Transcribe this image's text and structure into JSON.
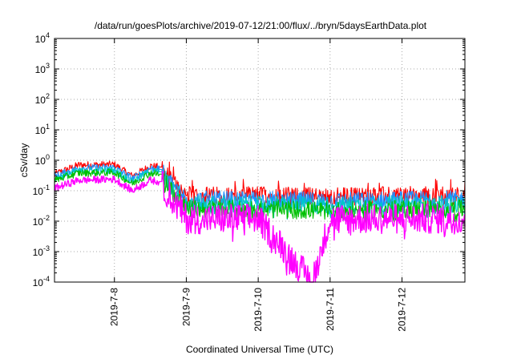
{
  "chart_data": {
    "type": "line",
    "title": "/data/run/goesPlots/archive/2019-07-12/21:00/flux/../bryn/5daysEarthData.plot",
    "xlabel": "Coordinated Universal Time (UTC)",
    "ylabel": "cSv/day",
    "y_scale": "log",
    "ylim": [
      0.0001,
      10000
    ],
    "y_ticks": [
      {
        "value": 0.0001,
        "base": "10",
        "exp": "-4"
      },
      {
        "value": 0.001,
        "base": "10",
        "exp": "-3"
      },
      {
        "value": 0.01,
        "base": "10",
        "exp": "-2"
      },
      {
        "value": 0.1,
        "base": "10",
        "exp": "-1"
      },
      {
        "value": 1,
        "base": "10",
        "exp": "0"
      },
      {
        "value": 10,
        "base": "10",
        "exp": "1"
      },
      {
        "value": 100,
        "base": "10",
        "exp": "2"
      },
      {
        "value": 1000,
        "base": "10",
        "exp": "3"
      },
      {
        "value": 10000,
        "base": "10",
        "exp": "4"
      }
    ],
    "xlim": [
      "2019-07-07 04:00",
      "2019-07-12 21:00"
    ],
    "x_ticks": [
      "2019-7-8",
      "2019-7-9",
      "2019-7-10",
      "2019-7-11",
      "2019-7-12"
    ],
    "grid": true,
    "series": [
      {
        "color": "#ff0000",
        "x": [
          "2019-07-07 04:00",
          "2019-07-07 12:00",
          "2019-07-08 00:00",
          "2019-07-08 06:00",
          "2019-07-08 12:00",
          "2019-07-08 15:00",
          "2019-07-09 00:00",
          "2019-07-10 00:00",
          "2019-07-11 00:00",
          "2019-07-12 00:00",
          "2019-07-12 21:00"
        ],
        "y": [
          0.35,
          0.7,
          0.72,
          0.3,
          0.65,
          0.6,
          0.07,
          0.07,
          0.065,
          0.07,
          0.07
        ]
      },
      {
        "color": "#1e90ff",
        "x": [
          "2019-07-07 04:00",
          "2019-07-07 12:00",
          "2019-07-08 00:00",
          "2019-07-08 06:00",
          "2019-07-08 12:00",
          "2019-07-08 15:00",
          "2019-07-09 00:00",
          "2019-07-10 00:00",
          "2019-07-11 00:00",
          "2019-07-12 00:00",
          "2019-07-12 21:00"
        ],
        "y": [
          0.3,
          0.55,
          0.58,
          0.25,
          0.55,
          0.5,
          0.05,
          0.05,
          0.045,
          0.05,
          0.05
        ]
      },
      {
        "color": "#00c8c8",
        "x": [
          "2019-07-07 04:00",
          "2019-07-07 12:00",
          "2019-07-08 00:00",
          "2019-07-08 06:00",
          "2019-07-08 12:00",
          "2019-07-08 15:00",
          "2019-07-09 00:00",
          "2019-07-10 00:00",
          "2019-07-11 00:00",
          "2019-07-12 00:00",
          "2019-07-12 21:00"
        ],
        "y": [
          0.25,
          0.45,
          0.47,
          0.2,
          0.45,
          0.42,
          0.035,
          0.035,
          0.032,
          0.035,
          0.035
        ]
      },
      {
        "color": "#00c000",
        "x": [
          "2019-07-07 04:00",
          "2019-07-07 12:00",
          "2019-07-08 00:00",
          "2019-07-08 06:00",
          "2019-07-08 12:00",
          "2019-07-08 15:00",
          "2019-07-09 00:00",
          "2019-07-10 00:00",
          "2019-07-11 00:00",
          "2019-07-12 00:00",
          "2019-07-12 21:00"
        ],
        "y": [
          0.22,
          0.38,
          0.4,
          0.17,
          0.38,
          0.35,
          0.025,
          0.025,
          0.022,
          0.025,
          0.025
        ]
      },
      {
        "color": "#ff00ff",
        "x": [
          "2019-07-07 04:00",
          "2019-07-07 12:00",
          "2019-07-08 00:00",
          "2019-07-08 06:00",
          "2019-07-08 12:00",
          "2019-07-08 15:00",
          "2019-07-09 00:00",
          "2019-07-10 00:00",
          "2019-07-10 18:00",
          "2019-07-11 00:00",
          "2019-07-12 00:00",
          "2019-07-12 21:00"
        ],
        "y": [
          0.12,
          0.22,
          0.24,
          0.1,
          0.22,
          0.2,
          0.012,
          0.012,
          0.0001,
          0.012,
          0.012,
          0.012
        ]
      }
    ],
    "colors": {
      "red": "#ff0000",
      "blue": "#1e90ff",
      "cyan": "#00c8c8",
      "green": "#00c000",
      "magenta": "#ff00ff"
    }
  }
}
